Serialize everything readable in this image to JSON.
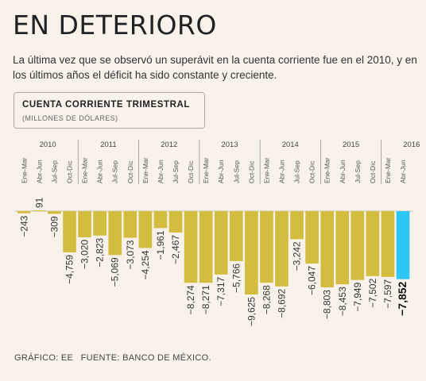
{
  "headline": "EN DETERIORO",
  "intro": "La última vez que se observó un superávit en la cuenta corriente fue en el 2010, y en los últimos años el déficit ha sido constante y creciente.",
  "chart_box": {
    "title": "CUENTA CORRIENTE TRIMESTRAL",
    "unit": "(MILLONES DE DÓLARES)"
  },
  "footer": {
    "credit": "GRÁFICO: EE",
    "source": "FUENTE: BANCO DE MÉXICO."
  },
  "colors": {
    "bar": "#d4bc3f",
    "highlight": "#2ec6f2",
    "background": "#f8f2ea",
    "divider": "#8a8a8a"
  },
  "chart_data": {
    "type": "bar",
    "title": "CUENTA CORRIENTE TRIMESTRAL",
    "unit": "(MILLONES DE DÓLARES)",
    "years": [
      "2010",
      "2011",
      "2012",
      "2013",
      "2014",
      "2015",
      "2016"
    ],
    "quarter_labels": [
      "Ene-Mar",
      "Abr-Jun",
      "Jul-Sep",
      "Oct-Dic"
    ],
    "categories": [
      "Ene-Mar 2010",
      "Abr-Jun 2010",
      "Jul-Sep 2010",
      "Oct-Dic 2010",
      "Ene-Mar 2011",
      "Abr-Jun 2011",
      "Jul-Sep 2011",
      "Oct-Dic 2011",
      "Ene-Mar 2012",
      "Abr-Jun 2012",
      "Jul-Sep 2012",
      "Oct-Dic 2012",
      "Ene-Mar 2013",
      "Abr-Jun 2013",
      "Jul-Sep 2013",
      "Oct-Dic 2013",
      "Ene-Mar 2014",
      "Abr-Jun 2014",
      "Jul-Sep 2014",
      "Oct-Dic 2014",
      "Ene-Mar 2015",
      "Abr-Jun 2015",
      "Jul-Sep 2015",
      "Oct-Dic 2015",
      "Ene-Mar 2016",
      "Abr-Jun 2016"
    ],
    "values": [
      -243,
      91,
      -309,
      -4759,
      -3020,
      -2823,
      -5069,
      -3073,
      -4254,
      -1961,
      -2467,
      -8274,
      -8271,
      -7317,
      -5766,
      -9625,
      -8268,
      -8692,
      -3242,
      -6047,
      -8803,
      -8453,
      -7949,
      -7502,
      -7597,
      -7852
    ],
    "value_labels": [
      "-243",
      "91",
      "-309",
      "-4,759",
      "-3,020",
      "-2,823",
      "-5,069",
      "-3,073",
      "-4,254",
      "-1,961",
      "-2,467",
      "-8,274",
      "-8,271",
      "-7,317",
      "-5,766",
      "-9,625",
      "-8,268",
      "-8,692",
      "-3,242",
      "-6,047",
      "-8,803",
      "-8,453",
      "-7,949",
      "-7,502",
      "-7,597",
      "-7,852"
    ],
    "highlight_index": 25
  }
}
